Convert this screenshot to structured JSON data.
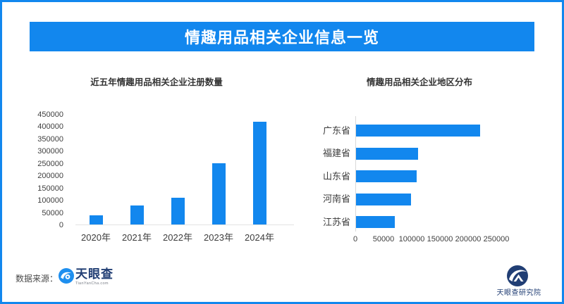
{
  "colors": {
    "primary_blue": "#1287ee",
    "navy": "#213e74",
    "axis_line": "#d9d9d9",
    "title_text": "#333333"
  },
  "header": {
    "title": "情趣用品相关企业信息一览"
  },
  "footer": {
    "source_label": "数据来源：",
    "tianyancha_name": "天眼查",
    "tianyancha_sub": "TianYanCha.com",
    "research_name": "天眼查研究院"
  },
  "chart_data": [
    {
      "type": "bar",
      "orientation": "vertical",
      "title": "近五年情趣用品相关企业注册数量",
      "categories": [
        "2020年",
        "2021年",
        "2022年",
        "2023年",
        "2024年"
      ],
      "values": [
        36000,
        78000,
        110000,
        250000,
        420000
      ],
      "ylim": [
        0,
        450000
      ],
      "yticks": [
        450000,
        400000,
        350000,
        300000,
        250000,
        200000,
        150000,
        100000,
        50000,
        0
      ],
      "bar_color": "#1287ee",
      "grid": false,
      "legend": "none"
    },
    {
      "type": "bar",
      "orientation": "horizontal",
      "title": "情趣用品相关企业地区分布",
      "categories": [
        "广东省",
        "福建省",
        "山东省",
        "河南省",
        "江苏省"
      ],
      "values": [
        220000,
        110000,
        108000,
        97000,
        69000
      ],
      "xlim": [
        0,
        250000
      ],
      "xticks": [
        0,
        50000,
        100000,
        150000,
        200000,
        250000
      ],
      "bar_color": "#1287ee",
      "grid": false,
      "legend": "none"
    }
  ]
}
